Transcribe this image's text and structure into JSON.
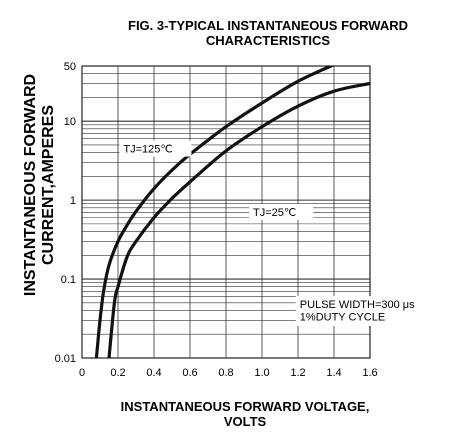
{
  "chart_data": {
    "type": "line",
    "title": "FIG. 3-TYPICAL INSTANTANEOUS FORWARD CHARACTERISTICS",
    "title_lines": [
      "FIG. 3-TYPICAL INSTANTANEOUS FORWARD",
      "CHARACTERISTICS"
    ],
    "xlabel": "INSTANTANEOUS FORWARD VOLTAGE, VOLTS",
    "xlabel_lines": [
      "INSTANTANEOUS FORWARD VOLTAGE,",
      "VOLTS"
    ],
    "ylabel": "INSTANTANEOUS FORWARD CURRENT,AMPERES",
    "ylabel_lines": [
      "INSTANTANEOUS FORWARD",
      "CURRENT,AMPERES"
    ],
    "xlim": [
      0,
      1.6
    ],
    "ylim": [
      0.01,
      50
    ],
    "yscale": "log",
    "grid": true,
    "x_ticks": [
      0,
      0.2,
      0.4,
      0.6,
      0.8,
      1.0,
      1.2,
      1.4,
      1.6
    ],
    "x_tick_labels": [
      "0",
      "0.2",
      "0.4",
      "0.6",
      "0.8",
      "1.0",
      "1.2",
      "1.4",
      "1.6"
    ],
    "y_ticks": [
      0.01,
      0.1,
      1,
      10,
      50
    ],
    "y_tick_labels": [
      "0.01",
      "0.1",
      "1",
      "10",
      "50"
    ],
    "series": [
      {
        "name": "TJ=125℃",
        "x": [
          0.08,
          0.1,
          0.12,
          0.15,
          0.2,
          0.25,
          0.3,
          0.4,
          0.5,
          0.6,
          0.8,
          1.0,
          1.2,
          1.4
        ],
        "y": [
          0.01,
          0.03,
          0.07,
          0.15,
          0.3,
          0.48,
          0.72,
          1.4,
          2.4,
          3.8,
          8.5,
          17,
          32,
          52
        ]
      },
      {
        "name": "TJ=25℃",
        "x": [
          0.15,
          0.18,
          0.2,
          0.25,
          0.3,
          0.4,
          0.5,
          0.6,
          0.8,
          1.0,
          1.2,
          1.4,
          1.6
        ],
        "y": [
          0.01,
          0.05,
          0.08,
          0.19,
          0.3,
          0.6,
          1.05,
          1.7,
          4.2,
          8.5,
          15.5,
          24,
          30
        ]
      }
    ],
    "annotations": [
      {
        "text": "PULSE WIDTH=300 μs",
        "x": 1.21,
        "y": 0.043
      },
      {
        "text": "1%DUTY CYCLE",
        "x": 1.21,
        "y": 0.03
      }
    ],
    "series_label_positions": [
      {
        "x": 0.23,
        "y": 4.0
      },
      {
        "x": 0.95,
        "y": 0.63
      }
    ]
  }
}
